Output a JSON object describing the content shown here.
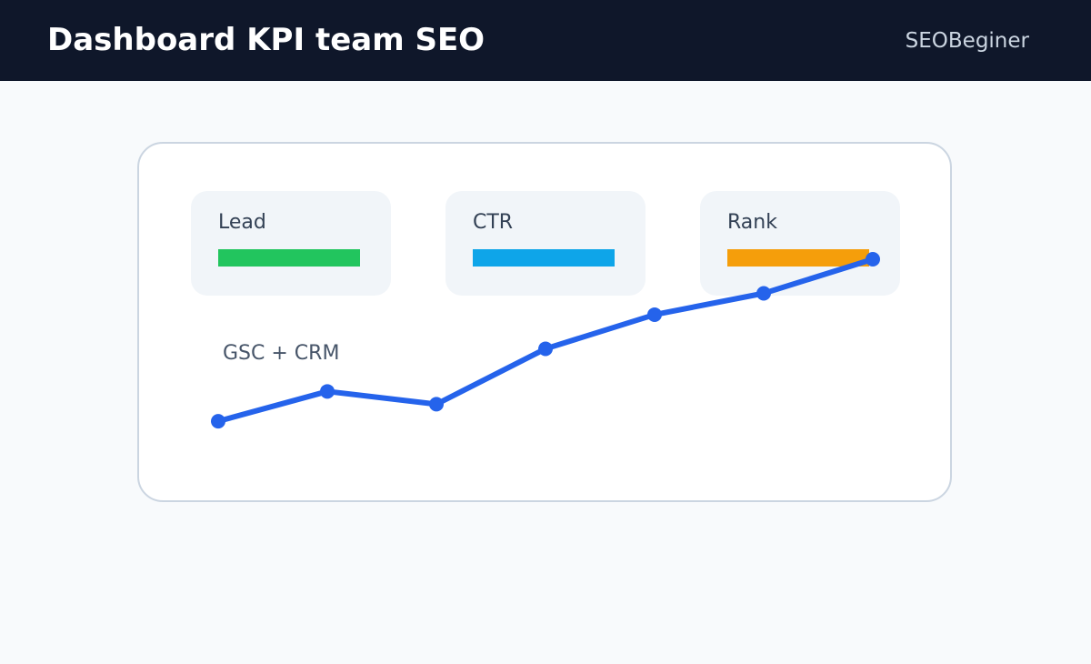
{
  "header": {
    "title": "Dashboard KPI team SEO",
    "brand": "SEOBeginer"
  },
  "kpis": [
    {
      "label": "Lead",
      "color": "#22c55e"
    },
    {
      "label": "CTR",
      "color": "#0ea5e9"
    },
    {
      "label": "Rank",
      "color": "#f59e0b"
    }
  ],
  "chart": {
    "source_label": "GSC + CRM",
    "line_color": "#2563eb"
  },
  "chart_data": {
    "type": "line",
    "x": [
      1,
      2,
      3,
      4,
      5,
      6,
      7
    ],
    "series": [
      {
        "values": [
          10,
          17,
          14,
          27,
          35,
          40,
          48
        ]
      }
    ],
    "ylim": [
      0,
      48
    ],
    "grid": false,
    "title": "",
    "xlabel": "",
    "ylabel": ""
  }
}
